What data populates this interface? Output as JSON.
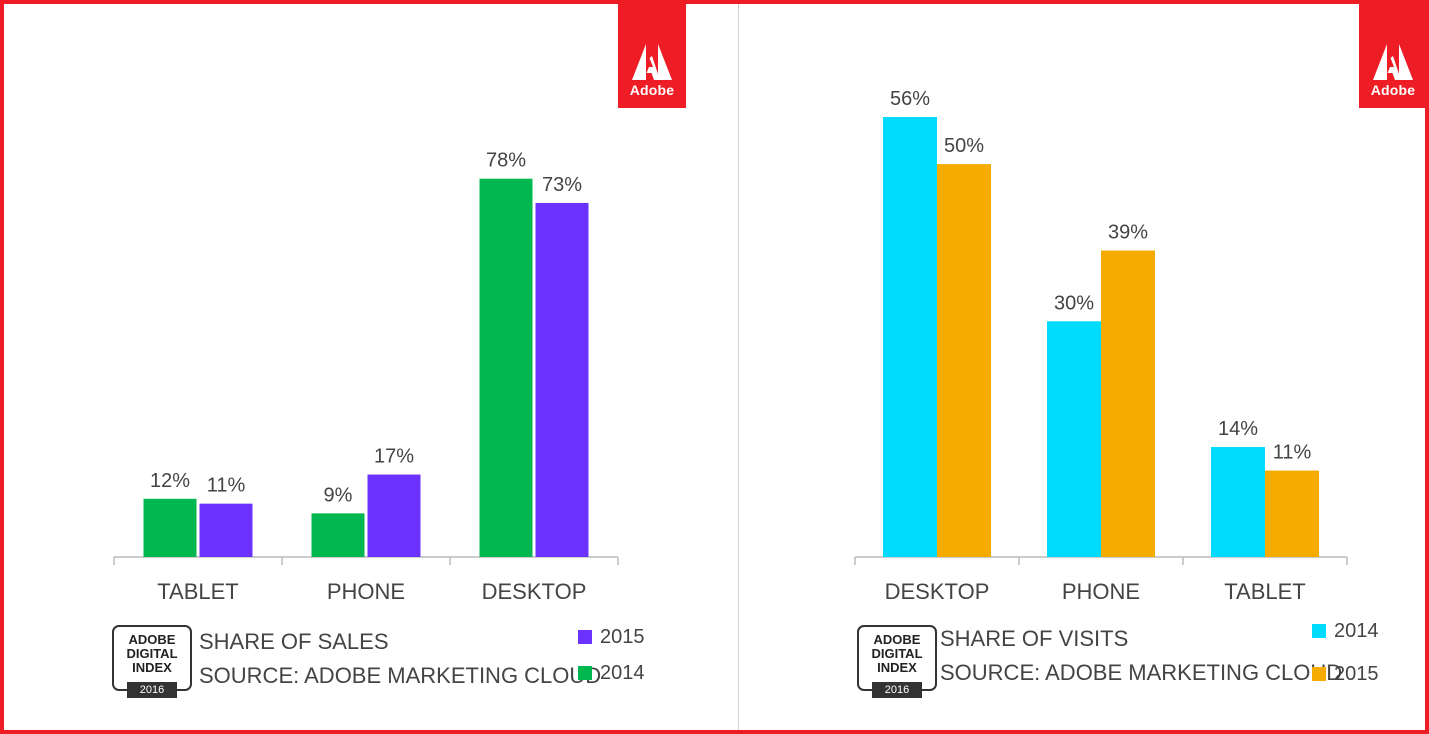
{
  "brand": {
    "logo_text": "Adobe",
    "color": "#ee1c24"
  },
  "badge": {
    "lines": [
      "ADOBE",
      "DIGITAL",
      "INDEX"
    ],
    "year": "2016"
  },
  "chart_data": [
    {
      "type": "bar",
      "title": "SHARE OF SALES",
      "source": "SOURCE: ADOBE MARKETING CLOUD",
      "categories": [
        "TABLET",
        "PHONE",
        "DESKTOP"
      ],
      "series": [
        {
          "name": "2014",
          "color": "#00b84f",
          "values": [
            12,
            9,
            78
          ],
          "labels": [
            "12%",
            "9%",
            "78%"
          ]
        },
        {
          "name": "2015",
          "color": "#6c33ff",
          "values": [
            11,
            17,
            73
          ],
          "labels": [
            "11%",
            "17%",
            "73%"
          ]
        }
      ],
      "legend_order": [
        "2015",
        "2014"
      ],
      "ylim": [
        0,
        80
      ],
      "xlabel": "",
      "ylabel": ""
    },
    {
      "type": "bar",
      "title": "SHARE OF VISITS",
      "source": "SOURCE: ADOBE MARKETING CLOUD",
      "categories": [
        "DESKTOP",
        "PHONE",
        "TABLET"
      ],
      "series": [
        {
          "name": "2014",
          "color": "#00dcff",
          "values": [
            56,
            30,
            14
          ],
          "labels": [
            "56%",
            "30%",
            "14%"
          ]
        },
        {
          "name": "2015",
          "color": "#f5ab00",
          "values": [
            50,
            39,
            11
          ],
          "labels": [
            "50%",
            "39%",
            "11%"
          ]
        }
      ],
      "legend_order": [
        "2014",
        "2015"
      ],
      "ylim": [
        0,
        56
      ],
      "xlabel": "",
      "ylabel": ""
    }
  ]
}
